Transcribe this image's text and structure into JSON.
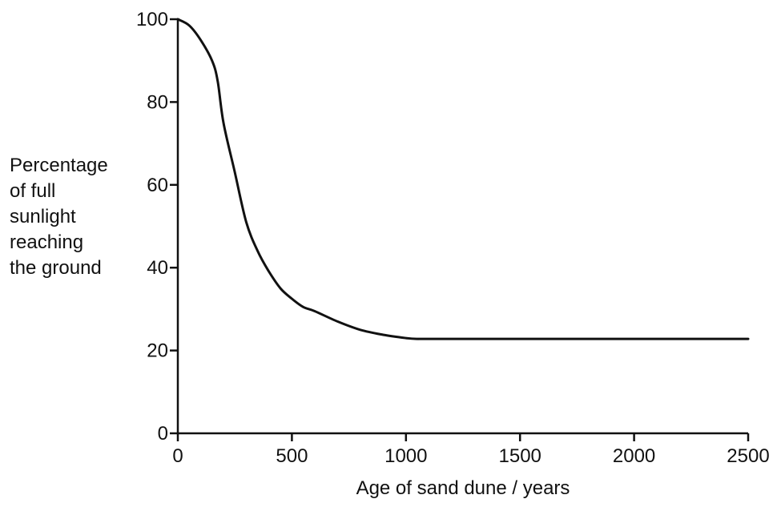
{
  "chart_data": {
    "type": "line",
    "title": "",
    "xlabel": "Age of sand dune / years",
    "ylabel_lines": [
      "Percentage",
      "of full",
      "sunlight",
      "reaching",
      "the ground"
    ],
    "xlim": [
      0,
      2500
    ],
    "ylim": [
      0,
      100
    ],
    "x_ticks": [
      0,
      500,
      1000,
      1500,
      2000,
      2500
    ],
    "y_ticks": [
      0,
      20,
      40,
      60,
      80,
      100
    ],
    "x_tick_labels": [
      "0",
      "500",
      "1000",
      "1500",
      "2000",
      "2500"
    ],
    "y_tick_labels": [
      "0",
      "20",
      "40",
      "60",
      "80",
      "100"
    ],
    "grid": false,
    "series": [
      {
        "x": [
          0,
          50,
          100,
          150,
          175,
          200,
          250,
          300,
          350,
          400,
          450,
          500,
          550,
          600,
          700,
          800,
          900,
          1000,
          1050,
          1100,
          1500,
          2000,
          2500
        ],
        "y": [
          100,
          98.5,
          95,
          90,
          85,
          75,
          63,
          51,
          44,
          39,
          35,
          32.5,
          30.5,
          29.5,
          27,
          25,
          23.8,
          23,
          22.8,
          22.8,
          22.8,
          22.8,
          22.8
        ]
      }
    ]
  }
}
